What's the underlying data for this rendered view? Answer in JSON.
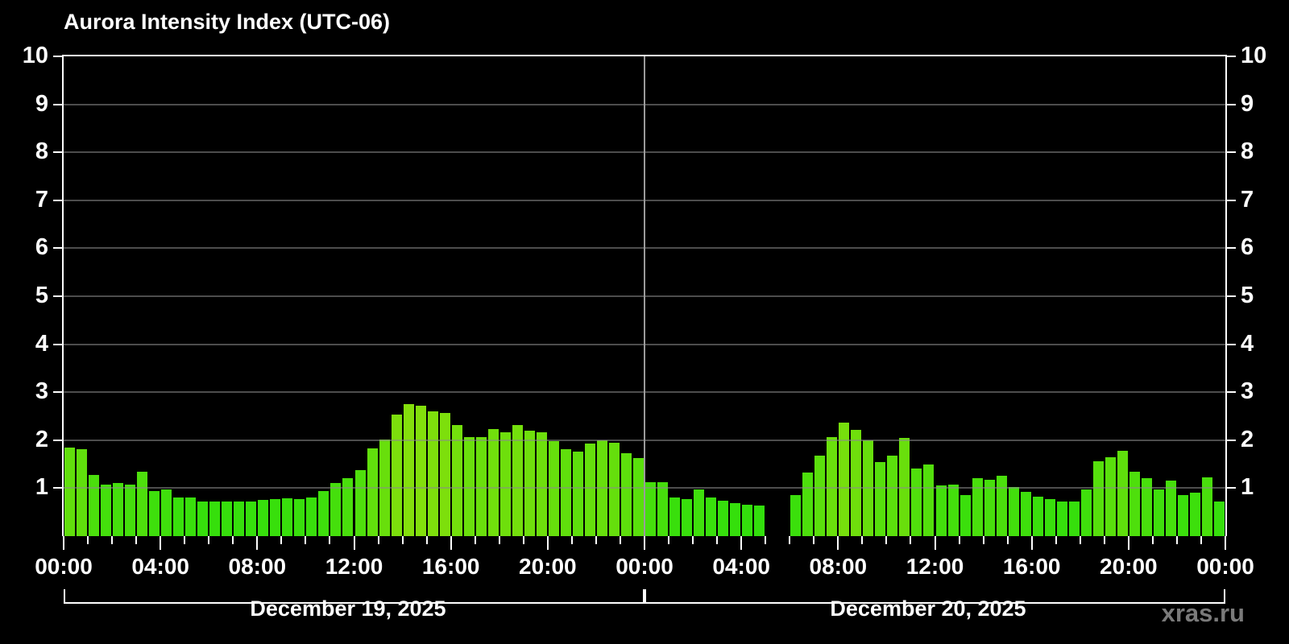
{
  "chart": {
    "title": "Aurora Intensity Index (UTC-06)",
    "watermark": "xras.ru"
  },
  "chart_data": {
    "type": "bar",
    "title": "Aurora Intensity Index (UTC-06)",
    "ylabel": "",
    "xlabel": "",
    "ylim": [
      0,
      10
    ],
    "grid": "horizontal",
    "legend": "none",
    "y_ticks": [
      1,
      2,
      3,
      4,
      5,
      6,
      7,
      8,
      9,
      10
    ],
    "x_tick_labels": [
      "00:00",
      "04:00",
      "08:00",
      "12:00",
      "16:00",
      "20:00",
      "00:00",
      "04:00",
      "08:00",
      "12:00",
      "16:00",
      "20:00",
      "00:00"
    ],
    "x_tick_step_hours": 4,
    "bar_interval_minutes": 30,
    "start_time": "00:00",
    "timezone": "UTC-06",
    "colors": {
      "background": "#000000",
      "text": "#ffffff",
      "axis": "#ffffff",
      "grid": "#555555",
      "day_divider": "#9a9a9a",
      "watermark": "#7a7a7a",
      "bar_low_value": "#1ed321",
      "bar_high_value": "#7de60a"
    },
    "days": [
      {
        "label": "December 19, 2025",
        "values": [
          1.85,
          1.81,
          1.28,
          1.08,
          1.11,
          1.08,
          1.34,
          0.94,
          0.97,
          0.81,
          0.8,
          0.73,
          0.73,
          0.72,
          0.72,
          0.73,
          0.76,
          0.77,
          0.79,
          0.77,
          0.8,
          0.94,
          1.11,
          1.21,
          1.37,
          1.83,
          2.01,
          2.53,
          2.75,
          2.72,
          2.6,
          2.56,
          2.31,
          2.06,
          2.07,
          2.24,
          2.17,
          2.32,
          2.2,
          2.17,
          1.98,
          1.82,
          1.76,
          1.93,
          1.99,
          1.94,
          1.73,
          1.63
        ]
      },
      {
        "label": "December 20, 2025",
        "values": [
          1.12,
          1.13,
          0.8,
          0.77,
          0.97,
          0.8,
          0.74,
          0.69,
          0.66,
          0.63,
          null,
          null,
          0.85,
          1.33,
          1.67,
          2.06,
          2.37,
          2.21,
          1.99,
          1.55,
          1.68,
          2.05,
          1.41,
          1.49,
          1.06,
          1.08,
          0.86,
          1.21,
          1.17,
          1.26,
          1.03,
          0.93,
          0.82,
          0.78,
          0.73,
          0.72,
          0.97,
          1.56,
          1.64,
          1.78,
          1.35,
          1.2,
          0.97,
          1.15,
          0.86,
          0.91,
          1.23,
          0.73
        ],
        "missing_data_times": [
          "05:00",
          "05:30"
        ]
      }
    ]
  }
}
